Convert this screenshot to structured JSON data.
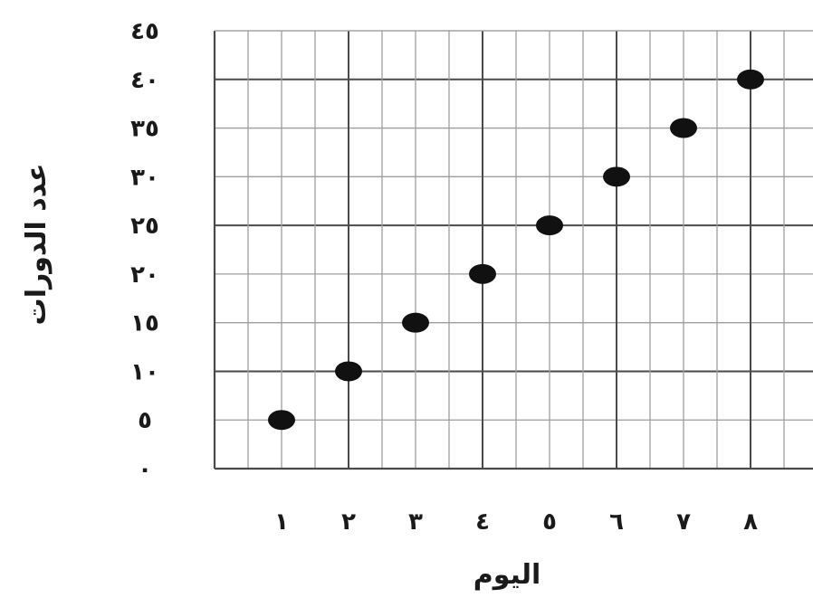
{
  "chart_data": {
    "type": "scatter",
    "xlabel": "اليوم",
    "ylabel": "عدد الدورات",
    "x_tick_labels": [
      "١",
      "٢",
      "٣",
      "٤",
      "٥",
      "٦",
      "٧",
      "٨"
    ],
    "y_tick_labels": [
      "٠",
      "٥",
      "١٠",
      "١٥",
      "٢٠",
      "٢٥",
      "٣٠",
      "٣٥",
      "٤٠",
      "٤٥"
    ],
    "x": [
      1,
      2,
      3,
      4,
      5,
      6,
      7,
      8
    ],
    "y": [
      5,
      10,
      15,
      20,
      25,
      30,
      35,
      40
    ],
    "xlim": [
      0,
      9
    ],
    "ylim": [
      0,
      45
    ],
    "grid": true,
    "colors": {
      "point": "#111111",
      "grid_minor": "#9e9e9e",
      "grid_major": "#4a4a4a",
      "text": "#1a1a1a"
    }
  }
}
